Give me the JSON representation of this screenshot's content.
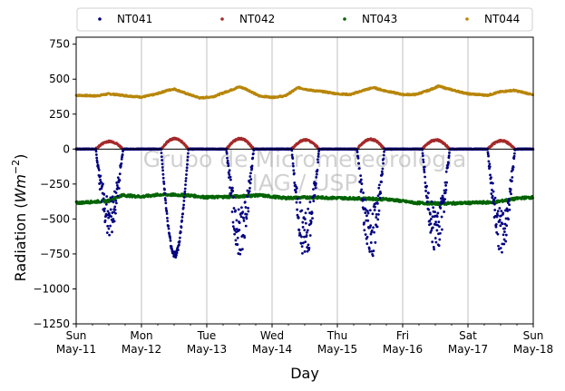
{
  "chart_data": {
    "type": "scatter",
    "xlabel": "Day",
    "ylabel_main": "Radiation (",
    "ylabel_unit": "Wm",
    "ylabel_exp": "−2",
    "ylabel_close": ")",
    "ylim": [
      -1250,
      800
    ],
    "y_ticks": [
      -1250,
      -1000,
      -750,
      -500,
      -250,
      0,
      250,
      500,
      750
    ],
    "y_tick_labels": [
      "−1250",
      "−1000",
      "−750",
      "−500",
      "−250",
      "0",
      "250",
      "500",
      "750"
    ],
    "xlim_days": [
      0,
      7
    ],
    "x_tick_labels": [
      {
        "day": "Sun",
        "date": "May-11"
      },
      {
        "day": "Mon",
        "date": "May-12"
      },
      {
        "day": "Tue",
        "date": "May-13"
      },
      {
        "day": "Wed",
        "date": "May-14"
      },
      {
        "day": "Thu",
        "date": "May-15"
      },
      {
        "day": "Fri",
        "date": "May-16"
      },
      {
        "day": "Sat",
        "date": "May-17"
      },
      {
        "day": "Sun",
        "date": "May-18"
      }
    ],
    "grid": "vertical-daily",
    "legend_placement": "top-outside",
    "watermark": [
      "Grupo de Micrometeorologia",
      "IAG / USP"
    ],
    "series": [
      {
        "name": "NT041",
        "color": "#000080",
        "night_value": 0,
        "daily_min": [
          -620,
          -780,
          -770,
          -800,
          -790,
          -770,
          -760
        ]
      },
      {
        "name": "NT042",
        "color": "#a52a2a",
        "night_value": 0,
        "daily_max": [
          55,
          75,
          75,
          65,
          70,
          65,
          60
        ]
      },
      {
        "name": "NT043",
        "color": "#006400",
        "baseline": -360,
        "points": [
          [
            0,
            -385
          ],
          [
            0.5,
            -370
          ],
          [
            0.7,
            -330
          ],
          [
            1.0,
            -340
          ],
          [
            1.3,
            -325
          ],
          [
            1.7,
            -330
          ],
          [
            2.0,
            -345
          ],
          [
            2.4,
            -340
          ],
          [
            2.8,
            -330
          ],
          [
            3.2,
            -350
          ],
          [
            3.6,
            -345
          ],
          [
            4.0,
            -350
          ],
          [
            4.5,
            -355
          ],
          [
            4.8,
            -360
          ],
          [
            5.2,
            -385
          ],
          [
            5.6,
            -390
          ],
          [
            6.0,
            -385
          ],
          [
            6.4,
            -380
          ],
          [
            6.8,
            -350
          ],
          [
            7.0,
            -345
          ]
        ]
      },
      {
        "name": "NT044",
        "color": "#b8860b",
        "points": [
          [
            0,
            385
          ],
          [
            0.3,
            380
          ],
          [
            0.5,
            395
          ],
          [
            0.8,
            380
          ],
          [
            1.0,
            372
          ],
          [
            1.2,
            390
          ],
          [
            1.4,
            420
          ],
          [
            1.5,
            430
          ],
          [
            1.7,
            395
          ],
          [
            1.9,
            365
          ],
          [
            2.1,
            375
          ],
          [
            2.3,
            410
          ],
          [
            2.5,
            445
          ],
          [
            2.6,
            430
          ],
          [
            2.8,
            380
          ],
          [
            3.0,
            370
          ],
          [
            3.2,
            380
          ],
          [
            3.4,
            440
          ],
          [
            3.6,
            420
          ],
          [
            3.8,
            410
          ],
          [
            4.0,
            395
          ],
          [
            4.2,
            390
          ],
          [
            4.4,
            420
          ],
          [
            4.55,
            440
          ],
          [
            4.7,
            420
          ],
          [
            5.0,
            390
          ],
          [
            5.2,
            390
          ],
          [
            5.4,
            420
          ],
          [
            5.55,
            450
          ],
          [
            5.7,
            430
          ],
          [
            6.0,
            395
          ],
          [
            6.3,
            385
          ],
          [
            6.5,
            410
          ],
          [
            6.7,
            420
          ],
          [
            6.9,
            400
          ],
          [
            7.0,
            385
          ]
        ]
      }
    ]
  }
}
